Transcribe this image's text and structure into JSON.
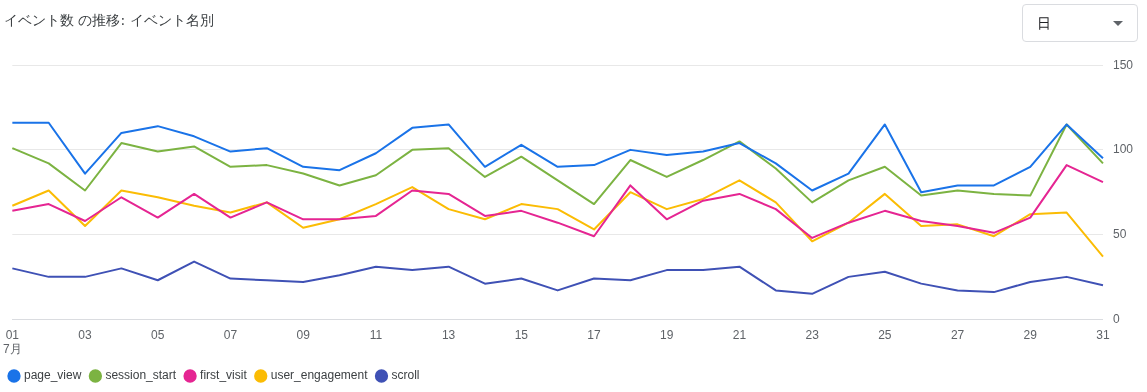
{
  "chart_data": {
    "type": "line",
    "title": "イベント数 の推移: イベント名別",
    "annotations": [
      "日"
    ],
    "categories": [
      "01\n7月",
      null,
      "03",
      null,
      "05",
      null,
      "07",
      null,
      "09",
      null,
      "11",
      null,
      "13",
      null,
      "15",
      null,
      "17",
      null,
      "19",
      null,
      "21",
      null,
      "23",
      null,
      "25",
      null,
      "27",
      null,
      "29",
      null,
      "31"
    ],
    "ylim": [
      0,
      150
    ],
    "yticks": [
      0,
      50,
      100,
      150
    ],
    "grid": "y",
    "legend": "bottom left",
    "line_style": "solid",
    "series": [
      {
        "name": "page_view",
        "color": "#1a73e8",
        "values": [
          116,
          116,
          86,
          110,
          114,
          108,
          99,
          101,
          90,
          88,
          98,
          113,
          115,
          90,
          103,
          90,
          91,
          100,
          97,
          99,
          104,
          92,
          76,
          86,
          115,
          75,
          79,
          79,
          90,
          115,
          95
        ]
      },
      {
        "name": "session_start",
        "color": "#7cb342",
        "values": [
          101,
          92,
          76,
          104,
          99,
          102,
          90,
          91,
          86,
          79,
          85,
          100,
          101,
          84,
          96,
          82,
          68,
          94,
          84,
          94,
          105,
          89,
          69,
          82,
          90,
          73,
          76,
          74,
          73,
          115,
          92
        ]
      },
      {
        "name": "first_visit",
        "color": "#e52592",
        "values": [
          64,
          68,
          58,
          72,
          60,
          74,
          60,
          69,
          59,
          59,
          61,
          76,
          74,
          61,
          64,
          57,
          49,
          79,
          59,
          70,
          74,
          65,
          48,
          57,
          64,
          58,
          55,
          51,
          60,
          91,
          81
        ]
      },
      {
        "name": "user_engagement",
        "color": "#fbbc04",
        "values": [
          67,
          76,
          55,
          76,
          72,
          67,
          63,
          69,
          54,
          59,
          68,
          78,
          65,
          59,
          68,
          65,
          53,
          75,
          65,
          71,
          82,
          69,
          46,
          57,
          74,
          55,
          56,
          49,
          62,
          63,
          37
        ]
      },
      {
        "name": "scroll",
        "color": "#3f51b5",
        "values": [
          30,
          25,
          25,
          30,
          23,
          34,
          24,
          23,
          22,
          26,
          31,
          29,
          31,
          21,
          24,
          17,
          24,
          23,
          29,
          29,
          31,
          17,
          15,
          25,
          28,
          21,
          17,
          16,
          22,
          25,
          20
        ]
      }
    ]
  }
}
